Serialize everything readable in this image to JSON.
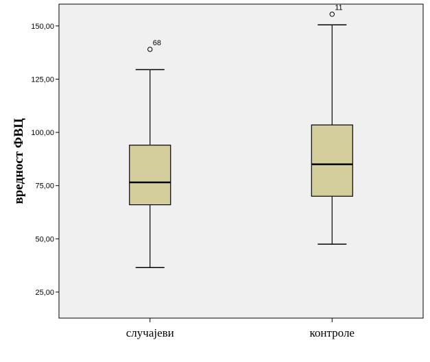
{
  "chart_data": {
    "type": "boxplot",
    "ylabel": "вредност ФВЦ",
    "xlabel": "",
    "ylim": [
      12.75,
      160.25
    ],
    "yticks": [
      25,
      50,
      75,
      100,
      125,
      150
    ],
    "ytick_labels": [
      "25,00",
      "50,00",
      "75,00",
      "100,00",
      "125,00",
      "150,00"
    ],
    "grid": false,
    "categories": [
      "случајеви",
      "контроле"
    ],
    "boxes": [
      {
        "category": "случајеви",
        "min": 36.5,
        "q1": 66,
        "median": 76.5,
        "q3": 94,
        "max": 129.5,
        "outliers": [
          {
            "value": 139,
            "label": "68"
          }
        ]
      },
      {
        "category": "контроле",
        "min": 47.5,
        "q1": 70,
        "median": 85,
        "q3": 103.5,
        "max": 150.5,
        "outliers": [
          {
            "value": 155.5,
            "label": "11"
          }
        ]
      }
    ],
    "colors": {
      "box_fill": "#d3ce9c",
      "plot_background": "#f0f0f0",
      "stroke": "#000000"
    }
  }
}
